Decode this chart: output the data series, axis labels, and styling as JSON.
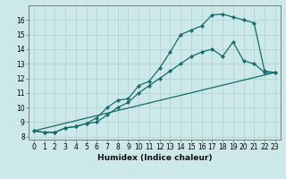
{
  "xlabel": "Humidex (Indice chaleur)",
  "xlim": [
    -0.5,
    23.5
  ],
  "ylim": [
    7.8,
    17.0
  ],
  "background_color": "#cce8e8",
  "grid_color": "#aad0d0",
  "line_color": "#1a6b6b",
  "curve1_x": [
    0,
    1,
    2,
    3,
    4,
    5,
    6,
    7,
    8,
    9,
    10,
    11,
    12,
    13,
    14,
    15,
    16,
    17,
    18,
    19,
    20,
    21,
    22,
    23
  ],
  "curve1_y": [
    8.4,
    8.3,
    8.3,
    8.6,
    8.7,
    8.9,
    9.3,
    10.0,
    10.5,
    10.6,
    11.5,
    11.8,
    12.7,
    13.8,
    15.0,
    15.3,
    15.6,
    16.35,
    16.4,
    16.2,
    16.0,
    15.8,
    12.5,
    12.4
  ],
  "curve2_x": [
    0,
    1,
    2,
    3,
    4,
    5,
    6,
    7,
    8,
    9,
    10,
    11,
    12,
    13,
    14,
    15,
    16,
    17,
    18,
    19,
    20,
    21,
    22,
    23
  ],
  "curve2_y": [
    8.4,
    8.3,
    8.3,
    8.6,
    8.7,
    8.9,
    9.0,
    9.5,
    10.0,
    10.35,
    11.0,
    11.5,
    12.0,
    12.5,
    13.0,
    13.5,
    13.8,
    14.0,
    13.5,
    14.5,
    13.2,
    13.0,
    12.4,
    12.4
  ],
  "curve3_x": [
    0,
    23
  ],
  "curve3_y": [
    8.4,
    12.4
  ],
  "yticks": [
    8,
    9,
    10,
    11,
    12,
    13,
    14,
    15,
    16
  ],
  "xticks": [
    0,
    1,
    2,
    3,
    4,
    5,
    6,
    7,
    8,
    9,
    10,
    11,
    12,
    13,
    14,
    15,
    16,
    17,
    18,
    19,
    20,
    21,
    22,
    23
  ],
  "tick_fontsize": 5.5,
  "label_fontsize": 6.5
}
